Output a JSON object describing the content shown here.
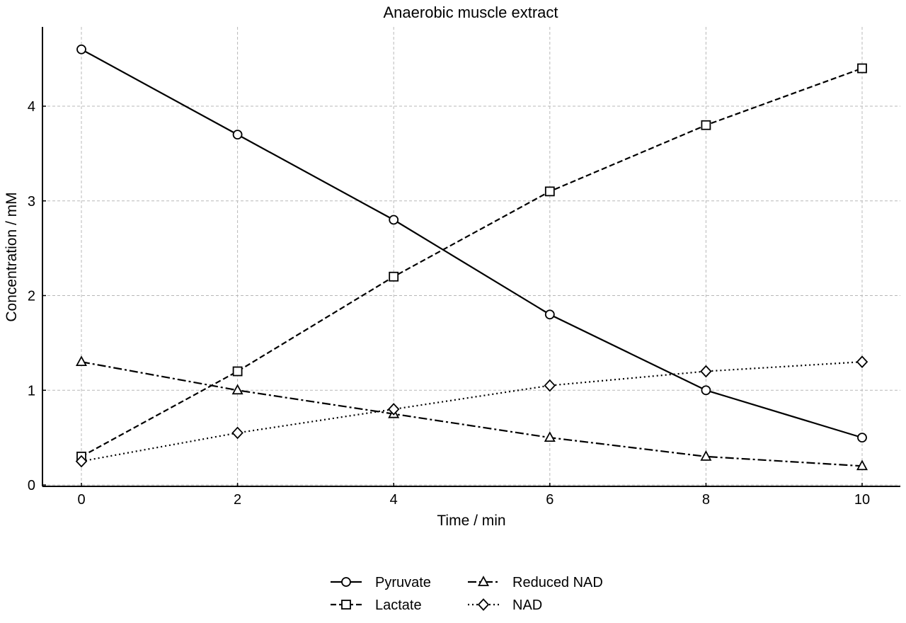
{
  "chart_data": {
    "type": "line",
    "title": "Anaerobic muscle extract",
    "xlabel": "Time / min",
    "ylabel": "Concentration / mM",
    "x": [
      0,
      2,
      4,
      6,
      8,
      10
    ],
    "xlim": [
      -0.5,
      10.5
    ],
    "ylim": [
      0,
      4.8
    ],
    "xticks": [
      "0",
      "2",
      "4",
      "6",
      "8",
      "10"
    ],
    "yticks": [
      "0",
      "1",
      "2",
      "3",
      "4"
    ],
    "grid": true,
    "legend_position": "bottom-center",
    "series": [
      {
        "name": "Pyruvate",
        "values": [
          4.6,
          3.7,
          2.8,
          1.8,
          1.0,
          0.5
        ],
        "line_style": "solid",
        "marker": "circle",
        "color": "#000000"
      },
      {
        "name": "Lactate",
        "values": [
          0.3,
          1.2,
          2.2,
          3.1,
          3.8,
          4.4
        ],
        "line_style": "dashed",
        "marker": "square",
        "color": "#000000"
      },
      {
        "name": "Reduced NAD",
        "values": [
          1.3,
          1.0,
          0.75,
          0.5,
          0.3,
          0.2
        ],
        "line_style": "dashdot",
        "marker": "triangle",
        "color": "#000000"
      },
      {
        "name": "NAD",
        "values": [
          0.25,
          0.55,
          0.8,
          1.05,
          1.2,
          1.3
        ],
        "line_style": "dotted",
        "marker": "diamond",
        "color": "#000000"
      }
    ]
  }
}
